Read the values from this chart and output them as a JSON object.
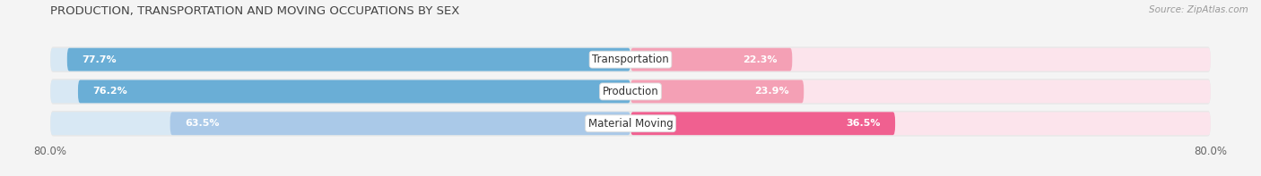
{
  "title": "PRODUCTION, TRANSPORTATION AND MOVING OCCUPATIONS BY SEX",
  "source": "Source: ZipAtlas.com",
  "categories": [
    "Transportation",
    "Production",
    "Material Moving"
  ],
  "male_values": [
    77.7,
    76.2,
    63.5
  ],
  "female_values": [
    22.3,
    23.9,
    36.5
  ],
  "male_colors": [
    "#6aaed6",
    "#6aaed6",
    "#aac9e8"
  ],
  "female_colors": [
    "#f4a0b5",
    "#f4a0b5",
    "#f06090"
  ],
  "male_color_bg": "#d8e8f4",
  "female_color_bg": "#fce4ec",
  "bar_height": 0.72,
  "xlim": [
    -80,
    80
  ],
  "background_color": "#f4f4f4",
  "row_bg_color": "#ffffff",
  "title_fontsize": 9.5,
  "label_fontsize": 8.5,
  "pct_fontsize": 8.0,
  "source_fontsize": 7.5
}
